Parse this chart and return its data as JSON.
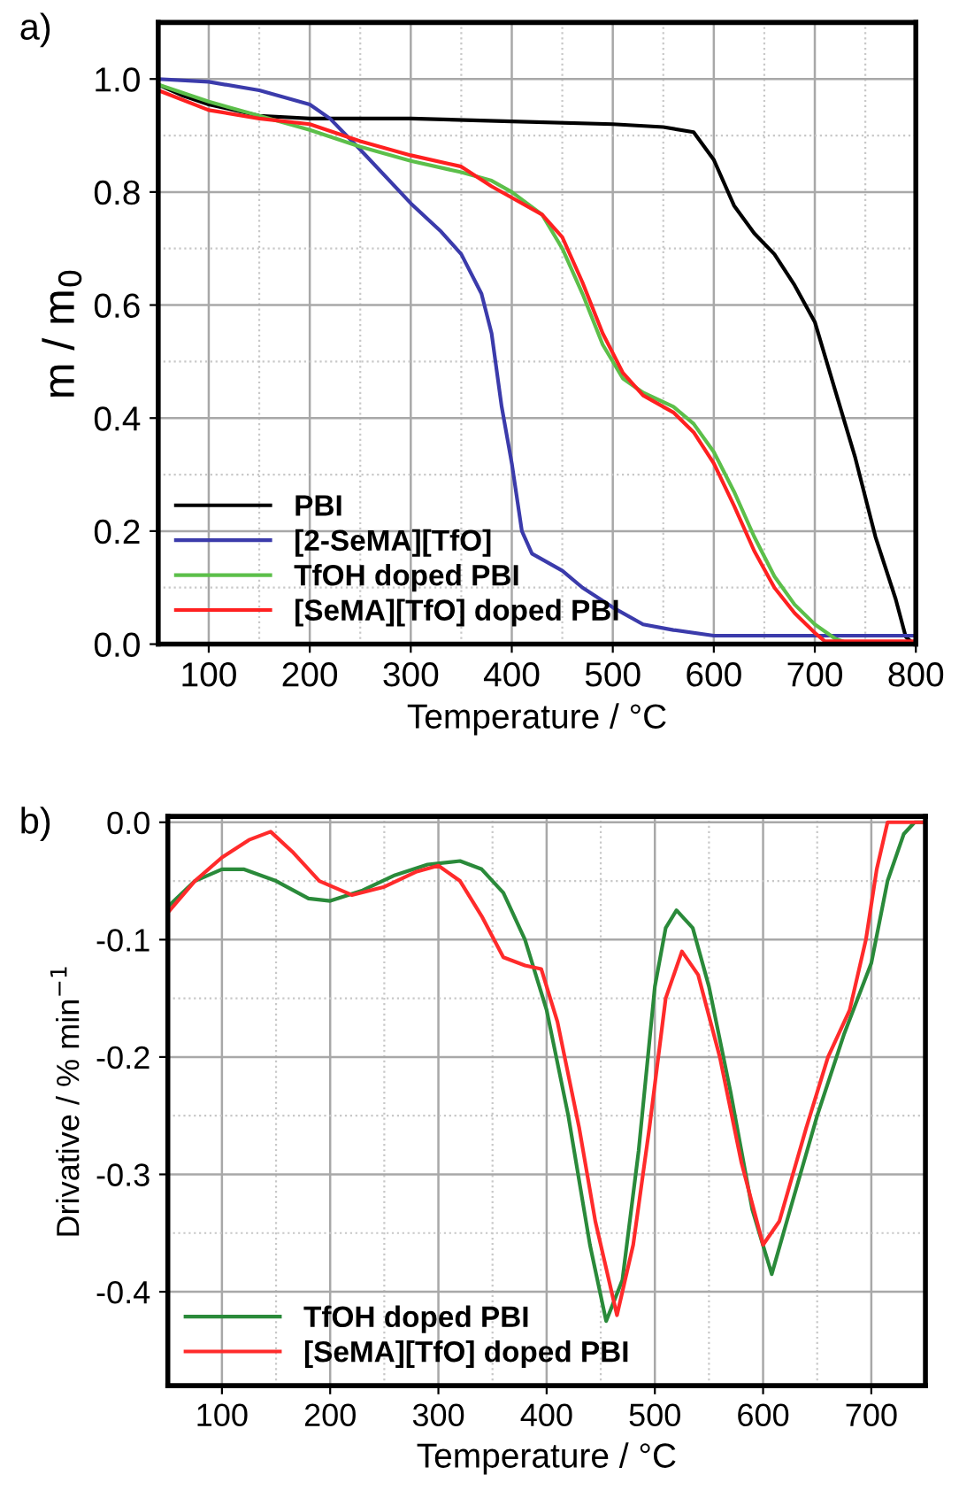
{
  "chart_data": [
    {
      "type": "line",
      "annotations": [
        "a)"
      ],
      "xlabel": "Temperature / °C",
      "ylabel": "m / m$_{0}$",
      "xlim": [
        50,
        800
      ],
      "ylim": [
        0,
        1.1
      ],
      "xticks": [
        100,
        200,
        300,
        400,
        500,
        600,
        700,
        800
      ],
      "yticks": [
        {
          "value": 0,
          "label": "0.0"
        },
        0.2,
        0.4,
        0.6,
        0.8,
        {
          "value": 1,
          "label": "1.0"
        }
      ],
      "grid": true,
      "legend": "bottom left",
      "line_style": "solid",
      "marker": "none",
      "series": [
        {
          "name": "PBI",
          "color": "#000000",
          "x": [
            50,
            75,
            100,
            150,
            200,
            300,
            400,
            500,
            550,
            580,
            600,
            620,
            640,
            660,
            680,
            700,
            720,
            740,
            760,
            780,
            790,
            795
          ],
          "values": [
            0.99,
            0.97,
            0.955,
            0.935,
            0.93,
            0.93,
            0.925,
            0.92,
            0.915,
            0.906,
            0.857,
            0.776,
            0.727,
            0.69,
            0.635,
            0.57,
            0.45,
            0.33,
            0.19,
            0.08,
            0.013,
            0.005
          ]
        },
        {
          "name": "[2-SeMA][TfO]",
          "color": "#3b3bab",
          "x": [
            50,
            100,
            150,
            200,
            220,
            250,
            300,
            330,
            350,
            370,
            380,
            390,
            400,
            410,
            420,
            450,
            470,
            500,
            530,
            560,
            600,
            700,
            800
          ],
          "values": [
            1.0,
            0.995,
            0.98,
            0.955,
            0.93,
            0.875,
            0.78,
            0.73,
            0.69,
            0.62,
            0.55,
            0.42,
            0.32,
            0.2,
            0.16,
            0.13,
            0.1,
            0.065,
            0.035,
            0.025,
            0.015,
            0.015,
            0.015
          ]
        },
        {
          "name": "TfOH doped PBI",
          "color": "#5cbf4a",
          "x": [
            50,
            100,
            150,
            200,
            250,
            300,
            350,
            380,
            400,
            430,
            450,
            470,
            490,
            510,
            530,
            560,
            580,
            600,
            620,
            640,
            660,
            680,
            700,
            720,
            735
          ],
          "values": [
            0.99,
            0.96,
            0.935,
            0.91,
            0.88,
            0.855,
            0.835,
            0.82,
            0.8,
            0.76,
            0.7,
            0.62,
            0.53,
            0.47,
            0.445,
            0.42,
            0.39,
            0.34,
            0.27,
            0.19,
            0.12,
            0.07,
            0.035,
            0.01,
            0.0
          ]
        },
        {
          "name": "[SeMA][TfO] doped PBI",
          "color": "#ff2020",
          "x": [
            50,
            100,
            150,
            200,
            250,
            300,
            350,
            380,
            400,
            430,
            450,
            470,
            490,
            510,
            530,
            560,
            580,
            600,
            620,
            640,
            660,
            680,
            700,
            710,
            800
          ],
          "values": [
            0.98,
            0.945,
            0.93,
            0.92,
            0.89,
            0.865,
            0.845,
            0.81,
            0.79,
            0.76,
            0.72,
            0.64,
            0.55,
            0.48,
            0.44,
            0.41,
            0.375,
            0.32,
            0.245,
            0.165,
            0.1,
            0.055,
            0.02,
            0.005,
            0.005
          ]
        }
      ]
    },
    {
      "type": "line",
      "annotations": [
        "b)"
      ],
      "xlabel": "Temperature / °C",
      "ylabel": "Drivative / % min$^{−1}$",
      "xlim": [
        50,
        750
      ],
      "ylim": [
        -0.48,
        0.005
      ],
      "xticks": [
        100,
        200,
        300,
        400,
        500,
        600,
        700
      ],
      "yticks": [
        {
          "value": -0.4,
          "label": "-0.4"
        },
        {
          "value": -0.3,
          "label": "-0.3"
        },
        {
          "value": -0.2,
          "label": "-0.2"
        },
        {
          "value": -0.1,
          "label": "-0.1"
        },
        {
          "value": 0,
          "label": "0.0"
        }
      ],
      "grid": true,
      "legend": "bottom left",
      "line_style": "solid",
      "marker": "none",
      "series": [
        {
          "name": "TfOH doped PBI",
          "color": "#2a8a3a",
          "x": [
            50,
            75,
            100,
            120,
            150,
            180,
            200,
            230,
            260,
            290,
            320,
            340,
            360,
            380,
            400,
            420,
            440,
            455,
            470,
            485,
            500,
            510,
            520,
            535,
            550,
            570,
            590,
            608,
            625,
            650,
            675,
            700,
            715,
            730,
            740,
            750
          ],
          "values": [
            -0.072,
            -0.05,
            -0.04,
            -0.04,
            -0.05,
            -0.065,
            -0.067,
            -0.058,
            -0.045,
            -0.036,
            -0.033,
            -0.04,
            -0.06,
            -0.1,
            -0.16,
            -0.25,
            -0.36,
            -0.425,
            -0.39,
            -0.28,
            -0.14,
            -0.09,
            -0.075,
            -0.09,
            -0.14,
            -0.23,
            -0.33,
            -0.385,
            -0.33,
            -0.25,
            -0.18,
            -0.12,
            -0.05,
            -0.01,
            0.0,
            0.0
          ]
        },
        {
          "name": "[SeMA][TfO] doped PBI",
          "color": "#ff2b2b",
          "x": [
            50,
            75,
            100,
            125,
            145,
            165,
            190,
            220,
            250,
            280,
            300,
            320,
            340,
            360,
            380,
            395,
            410,
            430,
            445,
            465,
            480,
            495,
            510,
            525,
            540,
            560,
            580,
            600,
            615,
            640,
            660,
            680,
            695,
            705,
            715,
            730,
            750
          ],
          "values": [
            -0.077,
            -0.05,
            -0.03,
            -0.015,
            -0.008,
            -0.025,
            -0.05,
            -0.062,
            -0.055,
            -0.042,
            -0.037,
            -0.05,
            -0.08,
            -0.115,
            -0.122,
            -0.125,
            -0.17,
            -0.26,
            -0.34,
            -0.42,
            -0.36,
            -0.26,
            -0.15,
            -0.11,
            -0.13,
            -0.2,
            -0.29,
            -0.36,
            -0.34,
            -0.26,
            -0.2,
            -0.16,
            -0.1,
            -0.04,
            0.0,
            0.0,
            0.0
          ]
        }
      ]
    }
  ]
}
